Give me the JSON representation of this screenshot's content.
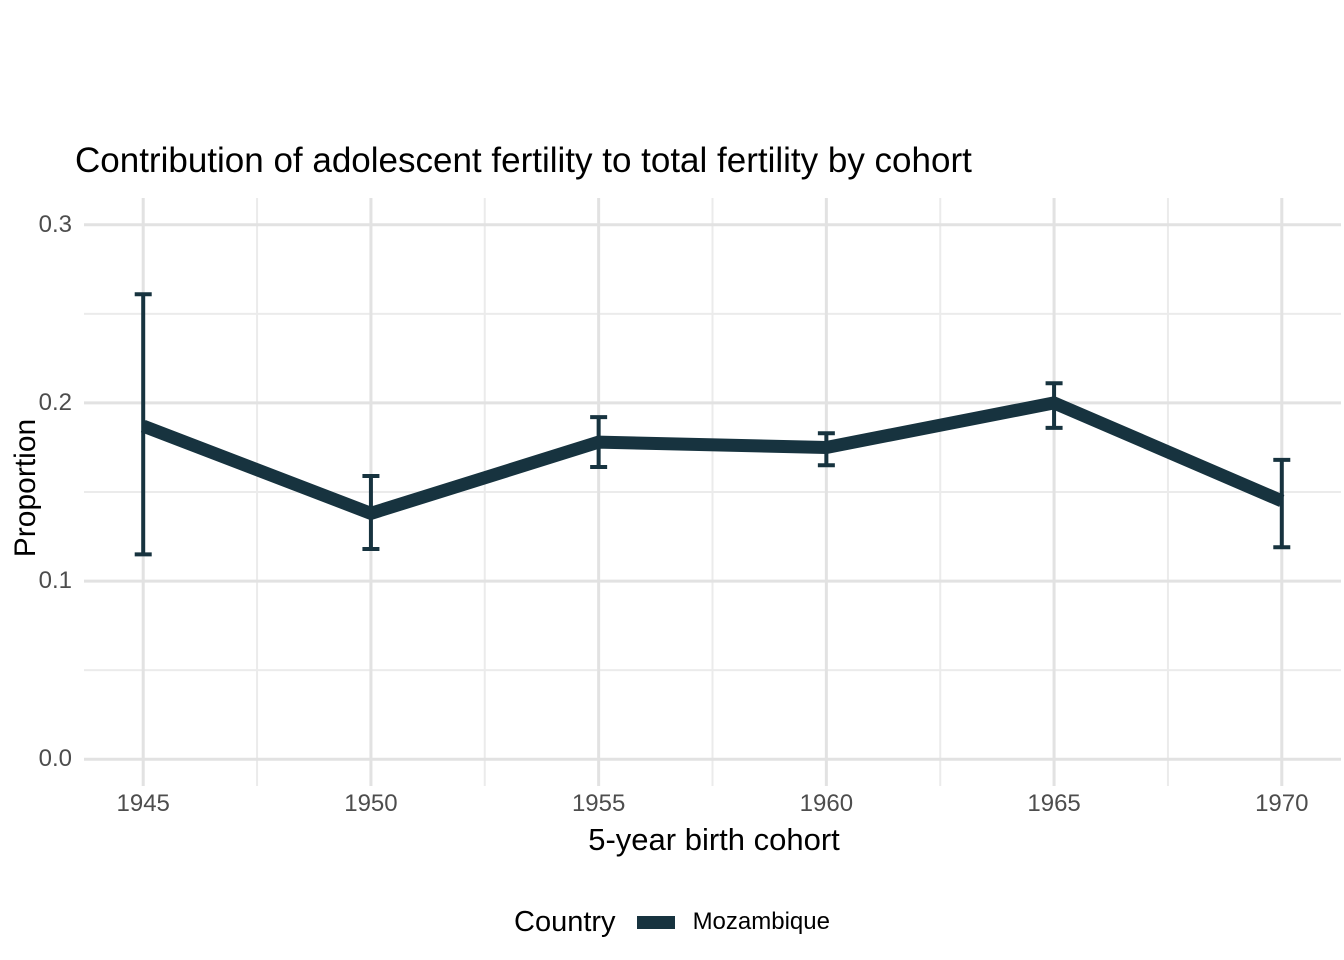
{
  "chart_data": {
    "type": "line",
    "title": "Contribution of adolescent fertility to total fertility by cohort",
    "xlabel": "5-year birth cohort",
    "ylabel": "Proportion",
    "legend_title": "Country",
    "legend_position": "bottom",
    "grid": "major+minor",
    "error_bars": true,
    "x": [
      1945,
      1950,
      1955,
      1960,
      1965,
      1970
    ],
    "x_tick_labels": [
      "1945",
      "1950",
      "1955",
      "1960",
      "1965",
      "1970"
    ],
    "x_minor_ticks": [
      1947.5,
      1952.5,
      1957.5,
      1962.5,
      1967.5
    ],
    "y_ticks": [
      0.0,
      0.1,
      0.2,
      0.3
    ],
    "y_tick_labels": [
      "0.0",
      "0.1",
      "0.2",
      "0.3"
    ],
    "y_minor_ticks": [
      0.05,
      0.15,
      0.25
    ],
    "xlim": [
      1943.7,
      1971.3
    ],
    "ylim": [
      -0.015,
      0.315
    ],
    "series": [
      {
        "name": "Mozambique",
        "color": "#17333F",
        "values": [
          0.187,
          0.138,
          0.178,
          0.175,
          0.2,
          0.145
        ],
        "ci_low": [
          0.115,
          0.118,
          0.164,
          0.165,
          0.186,
          0.119
        ],
        "ci_high": [
          0.261,
          0.159,
          0.192,
          0.183,
          0.211,
          0.168
        ]
      }
    ],
    "style": {
      "background": "#FFFFFF",
      "grid_major_color": "#E2E2E2",
      "grid_minor_color": "#EBEBEB",
      "tick_label_color": "#4D4D4D",
      "text_color": "#000000"
    }
  }
}
